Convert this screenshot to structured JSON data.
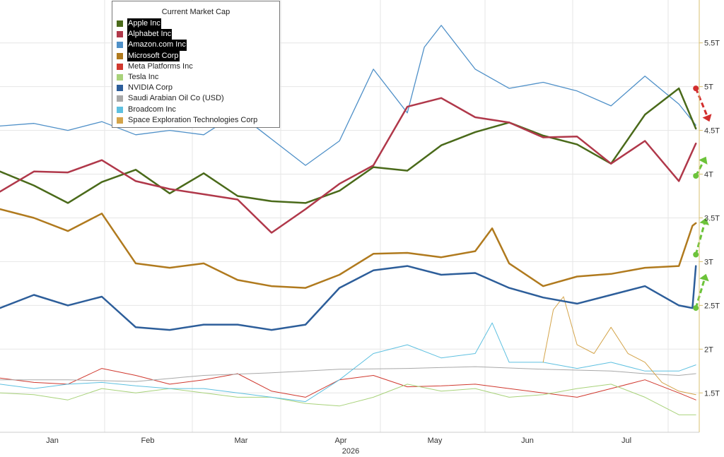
{
  "chart_data": {
    "type": "line",
    "title": "",
    "xlabel": "2026",
    "ylabel": "",
    "x_ticks": [
      "Jan",
      "Feb",
      "Mar",
      "Apr",
      "May",
      "Jun",
      "Jul"
    ],
    "y_ticks": [
      "1.5T",
      "2T",
      "2.5T",
      "3T",
      "3.5T",
      "4T",
      "4.5T",
      "5T",
      "5.5T"
    ],
    "y_tick_values": [
      1.5,
      2,
      2.5,
      3,
      3.5,
      4,
      4.5,
      5,
      5.5
    ],
    "ylim": [
      1.05,
      5.99
    ],
    "x_range_days": [
      0,
      206
    ],
    "grid": true,
    "legend_title": "Current Market Cap",
    "legend_position": "top-left",
    "series": [
      {
        "name": "Apple Inc",
        "color": "#4a6a1a",
        "width": 2.5,
        "highlight": true,
        "x": [
          0,
          10,
          20,
          30,
          40,
          50,
          60,
          70,
          80,
          90,
          100,
          110,
          120,
          130,
          140,
          150,
          160,
          170,
          180,
          190,
          200,
          205
        ],
        "y": [
          4.03,
          3.87,
          3.67,
          3.91,
          4.05,
          3.78,
          4.01,
          3.75,
          3.69,
          3.67,
          3.81,
          4.08,
          4.04,
          4.33,
          4.48,
          4.59,
          4.44,
          4.34,
          4.12,
          4.68,
          4.98,
          4.52
        ]
      },
      {
        "name": "Alphabet Inc",
        "color": "#b0384a",
        "width": 2.5,
        "highlight": true,
        "x": [
          0,
          10,
          20,
          30,
          40,
          50,
          60,
          70,
          80,
          90,
          100,
          110,
          120,
          130,
          140,
          150,
          160,
          170,
          180,
          190,
          200,
          205
        ],
        "y": [
          3.8,
          4.03,
          4.02,
          4.16,
          3.92,
          3.83,
          3.77,
          3.71,
          3.33,
          3.6,
          3.89,
          4.1,
          4.77,
          4.87,
          4.65,
          4.59,
          4.42,
          4.43,
          4.12,
          4.38,
          3.92,
          4.35
        ]
      },
      {
        "name": "Amazon.com Inc",
        "color": "#4f90c8",
        "width": 1.3,
        "highlight": true,
        "x": [
          0,
          10,
          20,
          30,
          40,
          50,
          60,
          70,
          80,
          90,
          100,
          110,
          120,
          125,
          130,
          140,
          150,
          160,
          170,
          180,
          190,
          200,
          205
        ],
        "y": [
          4.55,
          4.58,
          4.5,
          4.6,
          4.45,
          4.5,
          4.45,
          4.7,
          4.4,
          4.1,
          4.38,
          5.2,
          4.7,
          5.45,
          5.7,
          5.2,
          4.98,
          5.05,
          4.95,
          4.78,
          5.12,
          4.8,
          4.56
        ]
      },
      {
        "name": "Microsoft Corp",
        "color": "#b07a1e",
        "width": 2.5,
        "highlight": true,
        "x": [
          0,
          10,
          20,
          30,
          40,
          50,
          60,
          70,
          80,
          90,
          100,
          110,
          120,
          130,
          140,
          145,
          150,
          160,
          170,
          180,
          190,
          200,
          204,
          205
        ],
        "y": [
          3.6,
          3.5,
          3.35,
          3.55,
          2.98,
          2.93,
          2.98,
          2.79,
          2.72,
          2.7,
          2.85,
          3.09,
          3.1,
          3.05,
          3.12,
          3.38,
          2.98,
          2.72,
          2.83,
          2.86,
          2.93,
          2.95,
          3.41,
          3.44
        ]
      },
      {
        "name": "Meta Platforms Inc",
        "color": "#d0382e",
        "width": 1.0,
        "highlight": false,
        "x": [
          0,
          10,
          20,
          30,
          40,
          50,
          60,
          70,
          80,
          90,
          100,
          110,
          120,
          130,
          140,
          150,
          160,
          170,
          180,
          190,
          200,
          205
        ],
        "y": [
          1.67,
          1.62,
          1.6,
          1.78,
          1.7,
          1.6,
          1.65,
          1.72,
          1.52,
          1.45,
          1.65,
          1.7,
          1.57,
          1.58,
          1.6,
          1.55,
          1.5,
          1.45,
          1.55,
          1.65,
          1.5,
          1.42
        ]
      },
      {
        "name": "Tesla Inc",
        "color": "#a8d27a",
        "width": 1.0,
        "highlight": false,
        "x": [
          0,
          10,
          20,
          30,
          40,
          50,
          60,
          70,
          80,
          90,
          100,
          110,
          120,
          130,
          140,
          150,
          160,
          170,
          180,
          190,
          200,
          205
        ],
        "y": [
          1.5,
          1.48,
          1.42,
          1.55,
          1.5,
          1.55,
          1.5,
          1.45,
          1.45,
          1.38,
          1.35,
          1.45,
          1.6,
          1.52,
          1.55,
          1.45,
          1.48,
          1.55,
          1.6,
          1.45,
          1.25,
          1.25
        ]
      },
      {
        "name": "NVIDIA Corp",
        "color": "#2d5e9a",
        "width": 2.5,
        "highlight": false,
        "x": [
          0,
          10,
          20,
          30,
          40,
          50,
          60,
          70,
          80,
          90,
          100,
          110,
          120,
          130,
          140,
          150,
          160,
          170,
          180,
          190,
          200,
          204,
          205
        ],
        "y": [
          2.47,
          2.62,
          2.5,
          2.6,
          2.25,
          2.22,
          2.28,
          2.28,
          2.22,
          2.28,
          2.7,
          2.9,
          2.95,
          2.85,
          2.87,
          2.7,
          2.59,
          2.52,
          2.62,
          2.72,
          2.5,
          2.47,
          2.95
        ]
      },
      {
        "name": "Saudi Arabian Oil Co (USD)",
        "color": "#a8a8a8",
        "width": 1.0,
        "highlight": false,
        "x": [
          0,
          20,
          40,
          60,
          80,
          100,
          120,
          140,
          160,
          180,
          190,
          200,
          205
        ],
        "y": [
          1.65,
          1.65,
          1.63,
          1.7,
          1.73,
          1.77,
          1.78,
          1.8,
          1.77,
          1.75,
          1.72,
          1.7,
          1.72
        ]
      },
      {
        "name": "Broadcom Inc",
        "color": "#5ec0e0",
        "width": 1.0,
        "highlight": false,
        "x": [
          0,
          10,
          20,
          30,
          40,
          50,
          60,
          70,
          80,
          90,
          100,
          110,
          120,
          130,
          140,
          145,
          150,
          160,
          170,
          180,
          190,
          200,
          205
        ],
        "y": [
          1.6,
          1.55,
          1.6,
          1.62,
          1.58,
          1.55,
          1.55,
          1.5,
          1.45,
          1.4,
          1.65,
          1.95,
          2.05,
          1.9,
          1.95,
          2.3,
          1.85,
          1.85,
          1.78,
          1.85,
          1.75,
          1.75,
          1.82
        ]
      },
      {
        "name": "Space Exploration Technologies Corp",
        "color": "#d4a44a",
        "width": 1.0,
        "highlight": false,
        "x": [
          160,
          163,
          166,
          170,
          175,
          180,
          185,
          190,
          195,
          200,
          205
        ],
        "y": [
          1.85,
          2.45,
          2.6,
          2.05,
          1.95,
          2.25,
          1.95,
          1.85,
          1.62,
          1.52,
          1.48
        ]
      }
    ],
    "arrows": [
      {
        "color": "#d22e2e",
        "from": [
          205,
          4.98
        ],
        "to": [
          209,
          4.6
        ]
      },
      {
        "color": "#6cc33a",
        "from": [
          205,
          3.98
        ],
        "to": [
          208,
          4.2
        ]
      },
      {
        "color": "#6cc33a",
        "from": [
          205,
          3.08
        ],
        "to": [
          208,
          3.5
        ]
      },
      {
        "color": "#6cc33a",
        "from": [
          205,
          2.47
        ],
        "to": [
          208,
          2.86
        ]
      }
    ]
  }
}
